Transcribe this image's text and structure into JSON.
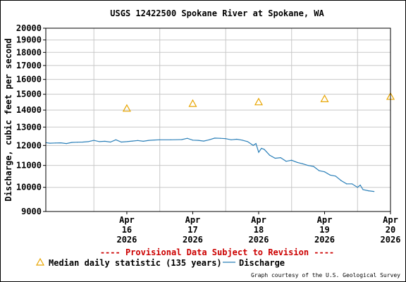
{
  "chart_data": {
    "type": "line",
    "title": "USGS 12422500 Spokane River at Spokane, WA",
    "ylabel": "Discharge, cubic feet per second",
    "xlabel": "",
    "y_scale": "log",
    "ylim": [
      9000,
      20000
    ],
    "y_ticks": [
      9000,
      10000,
      11000,
      12000,
      13000,
      14000,
      15000,
      16000,
      17000,
      18000,
      19000,
      20000
    ],
    "y_tick_labels": [
      "9000",
      "10000",
      "11000",
      "12000",
      "13000",
      "14000",
      "15000",
      "16000",
      "17000",
      "18000",
      "19000",
      "20000"
    ],
    "x_tick_labels": [
      {
        "month": "Apr",
        "day": "16",
        "year": "2026"
      },
      {
        "month": "Apr",
        "day": "17",
        "year": "2026"
      },
      {
        "month": "Apr",
        "day": "18",
        "year": "2026"
      },
      {
        "month": "Apr",
        "day": "19",
        "year": "2026"
      },
      {
        "month": "Apr",
        "day": "20",
        "year": "2026"
      }
    ],
    "xlim": [
      "2026-04-15 06:30",
      "2026-04-20 12:00"
    ],
    "grid": true,
    "notice": "---- Provisional Data Subject to Revision ----",
    "notice_color": "#cc0000",
    "credit": "Graph courtesy of the U.S. Geological Survey",
    "series": [
      {
        "name": "Median daily statistic (135 years)",
        "kind": "marker-triangle",
        "color": "#e8a500",
        "points": [
          {
            "x": "2026-04-16 12:00",
            "y": 14100
          },
          {
            "x": "2026-04-17 12:00",
            "y": 14400
          },
          {
            "x": "2026-04-18 12:00",
            "y": 14500
          },
          {
            "x": "2026-04-19 12:00",
            "y": 14700
          },
          {
            "x": "2026-04-20 12:00",
            "y": 14850
          }
        ]
      },
      {
        "name": "Discharge",
        "kind": "line",
        "color": "#2a7fb8",
        "points": [
          {
            "x": "2026-04-15 06:30",
            "y": 12150
          },
          {
            "x": "2026-04-15 08:00",
            "y": 12120
          },
          {
            "x": "2026-04-15 10:00",
            "y": 12130
          },
          {
            "x": "2026-04-15 12:00",
            "y": 12140
          },
          {
            "x": "2026-04-15 14:00",
            "y": 12100
          },
          {
            "x": "2026-04-15 16:00",
            "y": 12160
          },
          {
            "x": "2026-04-15 18:00",
            "y": 12170
          },
          {
            "x": "2026-04-15 20:00",
            "y": 12180
          },
          {
            "x": "2026-04-15 22:00",
            "y": 12200
          },
          {
            "x": "2026-04-16 00:00",
            "y": 12270
          },
          {
            "x": "2026-04-16 02:00",
            "y": 12200
          },
          {
            "x": "2026-04-16 04:00",
            "y": 12220
          },
          {
            "x": "2026-04-16 06:00",
            "y": 12180
          },
          {
            "x": "2026-04-16 08:00",
            "y": 12300
          },
          {
            "x": "2026-04-16 10:00",
            "y": 12180
          },
          {
            "x": "2026-04-16 12:00",
            "y": 12200
          },
          {
            "x": "2026-04-16 14:00",
            "y": 12230
          },
          {
            "x": "2026-04-16 16:00",
            "y": 12260
          },
          {
            "x": "2026-04-16 18:00",
            "y": 12220
          },
          {
            "x": "2026-04-16 20:00",
            "y": 12270
          },
          {
            "x": "2026-04-16 22:00",
            "y": 12290
          },
          {
            "x": "2026-04-17 00:00",
            "y": 12300
          },
          {
            "x": "2026-04-17 04:00",
            "y": 12300
          },
          {
            "x": "2026-04-17 08:00",
            "y": 12310
          },
          {
            "x": "2026-04-17 10:00",
            "y": 12380
          },
          {
            "x": "2026-04-17 12:00",
            "y": 12280
          },
          {
            "x": "2026-04-17 14:00",
            "y": 12270
          },
          {
            "x": "2026-04-17 16:00",
            "y": 12230
          },
          {
            "x": "2026-04-17 18:00",
            "y": 12300
          },
          {
            "x": "2026-04-17 20:00",
            "y": 12390
          },
          {
            "x": "2026-04-17 22:00",
            "y": 12380
          },
          {
            "x": "2026-04-18 00:00",
            "y": 12360
          },
          {
            "x": "2026-04-18 02:00",
            "y": 12300
          },
          {
            "x": "2026-04-18 04:00",
            "y": 12330
          },
          {
            "x": "2026-04-18 06:00",
            "y": 12280
          },
          {
            "x": "2026-04-18 08:00",
            "y": 12200
          },
          {
            "x": "2026-04-18 10:00",
            "y": 12000
          },
          {
            "x": "2026-04-18 11:00",
            "y": 12100
          },
          {
            "x": "2026-04-18 12:00",
            "y": 11650
          },
          {
            "x": "2026-04-18 13:00",
            "y": 11850
          },
          {
            "x": "2026-04-18 14:00",
            "y": 11800
          },
          {
            "x": "2026-04-18 16:00",
            "y": 11500
          },
          {
            "x": "2026-04-18 18:00",
            "y": 11350
          },
          {
            "x": "2026-04-18 20:00",
            "y": 11380
          },
          {
            "x": "2026-04-18 22:00",
            "y": 11200
          },
          {
            "x": "2026-04-19 00:00",
            "y": 11250
          },
          {
            "x": "2026-04-19 02:00",
            "y": 11150
          },
          {
            "x": "2026-04-19 04:00",
            "y": 11080
          },
          {
            "x": "2026-04-19 06:00",
            "y": 11000
          },
          {
            "x": "2026-04-19 08:00",
            "y": 10950
          },
          {
            "x": "2026-04-19 10:00",
            "y": 10750
          },
          {
            "x": "2026-04-19 12:00",
            "y": 10700
          },
          {
            "x": "2026-04-19 14:00",
            "y": 10550
          },
          {
            "x": "2026-04-19 16:00",
            "y": 10500
          },
          {
            "x": "2026-04-19 18:00",
            "y": 10300
          },
          {
            "x": "2026-04-19 20:00",
            "y": 10150
          },
          {
            "x": "2026-04-19 22:00",
            "y": 10150
          },
          {
            "x": "2026-04-20 00:00",
            "y": 10000
          },
          {
            "x": "2026-04-20 01:00",
            "y": 10100
          },
          {
            "x": "2026-04-20 02:00",
            "y": 9900
          },
          {
            "x": "2026-04-20 04:00",
            "y": 9850
          },
          {
            "x": "2026-04-20 06:00",
            "y": 9820
          }
        ]
      }
    ]
  }
}
